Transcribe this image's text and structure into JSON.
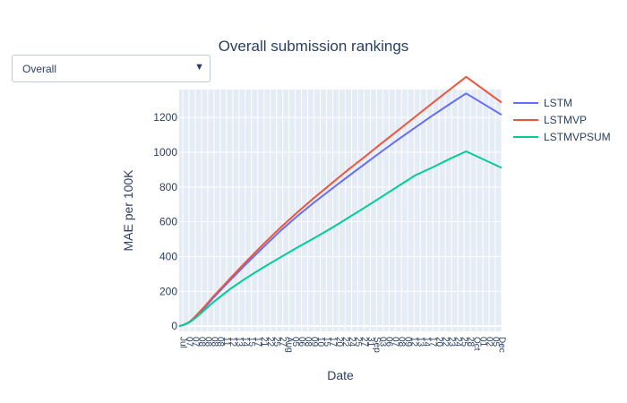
{
  "dropdown": {
    "selected": "Overall",
    "arrow_icon": "triangle-down-icon"
  },
  "chart_data": {
    "type": "line",
    "title": "Overall submission rankings",
    "xlabel": "Date",
    "ylabel": "MAE per 100K",
    "ylim": [
      -30,
      1360
    ],
    "yticks": [
      0,
      200,
      400,
      600,
      800,
      1000,
      1200
    ],
    "grid": true,
    "legend_placement": "right",
    "plot_background": "#e5ecf6",
    "x": [
      0,
      2,
      4,
      6,
      8,
      10,
      15,
      20,
      30,
      40,
      50,
      60,
      70,
      80,
      90,
      100,
      110,
      120,
      130,
      140,
      150,
      160,
      170,
      180,
      191
    ],
    "x_tick_labels": [
      "Jul",
      "07",
      "07",
      "08",
      "08",
      "08",
      "08",
      "11",
      "12",
      "13",
      "14",
      "15",
      "17",
      "21",
      "22",
      "25",
      "27",
      "Aug",
      "05",
      "06",
      "08",
      "09",
      "10",
      "15",
      "17",
      "20",
      "22",
      "24",
      "25",
      "27",
      "31",
      "Sep",
      "03",
      "06",
      "07",
      "08",
      "09",
      "12",
      "13",
      "14",
      "17",
      "20",
      "22",
      "23",
      "24",
      "25",
      "28",
      "Oct",
      "01",
      "02",
      "05",
      "Dec"
    ],
    "series": [
      {
        "name": "LSTM",
        "color": "#636efa",
        "values": [
          0,
          5,
          12,
          22,
          38,
          55,
          105,
          160,
          262,
          360,
          455,
          548,
          632,
          712,
          786,
          860,
          932,
          1005,
          1075,
          1143,
          1210,
          1275,
          1338,
          1398,
          1215
        ]
      },
      {
        "name": "LSTMVP",
        "color": "#ef553b",
        "values": [
          0,
          5,
          13,
          24,
          41,
          60,
          112,
          168,
          272,
          374,
          472,
          566,
          654,
          738,
          818,
          898,
          974,
          1052,
          1128,
          1205,
          1282,
          1358,
          1433,
          1505,
          1285
        ]
      },
      {
        "name": "LSTMVPSUM",
        "color": "#00cc96",
        "values": [
          0,
          5,
          12,
          21,
          35,
          50,
          92,
          136,
          212,
          278,
          338,
          396,
          452,
          506,
          562,
          622,
          682,
          744,
          806,
          868,
          912,
          960,
          1005,
          1052,
          910
        ]
      }
    ]
  }
}
